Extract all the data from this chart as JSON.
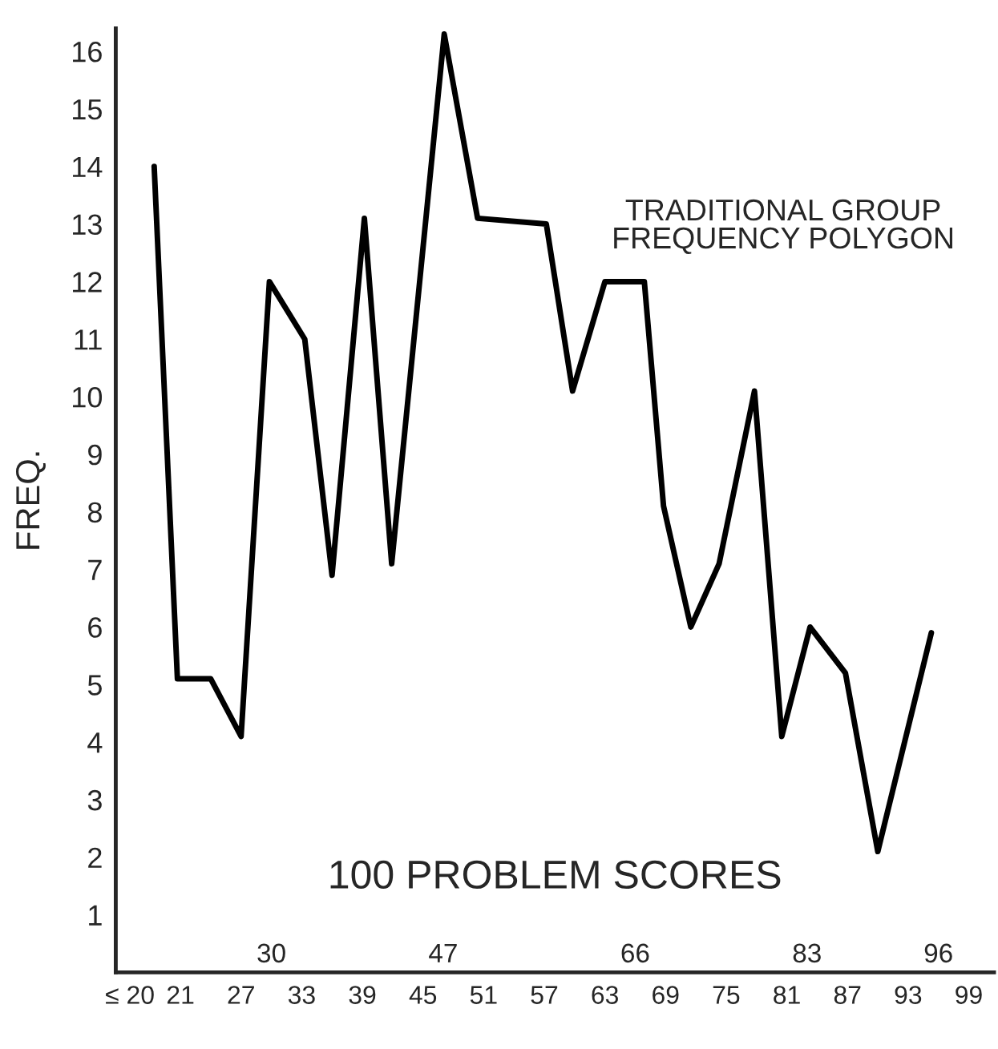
{
  "chart_data": {
    "type": "line",
    "title": "TRADITIONAL GROUP\nFREQUENCY POLYGON",
    "xlabel": "100 PROBLEM SCORES",
    "ylabel": "FREQ.",
    "x": [
      18.4,
      20.7,
      24,
      27,
      29.8,
      33.3,
      36,
      39.2,
      41.9,
      47.1,
      50.4,
      57.2,
      59.8,
      63,
      66.9,
      68.8,
      71.5,
      74.3,
      77.8,
      80.5,
      83.3,
      86.8,
      90,
      95.3
    ],
    "series": [
      {
        "color": "#000000",
        "values": [
          14,
          5.1,
          5.1,
          4.1,
          12,
          11,
          6.9,
          13.1,
          7.1,
          16.3,
          13.1,
          13,
          10.1,
          12,
          12,
          8.1,
          6,
          7.1,
          10.1,
          4.1,
          6,
          5.2,
          2.1,
          5.9
        ]
      }
    ],
    "xlim": [
      14.6,
      101.5
    ],
    "xticks": [
      {
        "value": 16,
        "label": "≤ 20"
      },
      21,
      27,
      33,
      39,
      45,
      51,
      57,
      63,
      69,
      75,
      81,
      87,
      93,
      99
    ],
    "x2lim": [
      14.6,
      101.5
    ],
    "x2ticks": [
      30,
      47,
      66,
      83,
      96
    ],
    "ylim": [
      0,
      16.4
    ],
    "yticks": [
      1,
      2,
      3,
      4,
      5,
      6,
      7,
      8,
      9,
      10,
      11,
      12,
      13,
      14,
      15,
      16
    ],
    "grid": false,
    "legend": false,
    "marker": "none",
    "line_style": "solid"
  }
}
